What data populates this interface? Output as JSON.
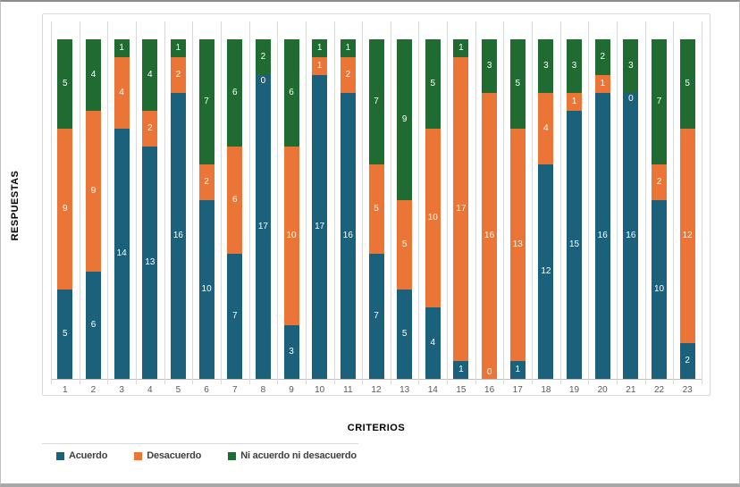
{
  "chart_data": {
    "type": "bar",
    "stacked": true,
    "title": "",
    "xlabel": "CRITERIOS",
    "ylabel": "RESPUESTAS",
    "ylim": [
      0,
      20
    ],
    "grid": "vertical-category-lines",
    "legend_position": "bottom-left",
    "categories": [
      "1",
      "2",
      "3",
      "4",
      "5",
      "6",
      "7",
      "8",
      "9",
      "10",
      "11",
      "12",
      "13",
      "14",
      "15",
      "16",
      "17",
      "18",
      "19",
      "20",
      "21",
      "22",
      "23"
    ],
    "series": [
      {
        "name": "Acuerdo",
        "color": "#1B617C",
        "values": [
          5,
          6,
          14,
          13,
          16,
          10,
          7,
          17,
          3,
          17,
          16,
          7,
          5,
          4,
          1,
          0,
          1,
          12,
          15,
          16,
          16,
          10,
          2
        ]
      },
      {
        "name": "Desacuerdo",
        "color": "#EB7536",
        "values": [
          9,
          9,
          4,
          2,
          2,
          2,
          6,
          0,
          10,
          1,
          2,
          5,
          5,
          10,
          17,
          16,
          13,
          4,
          1,
          1,
          0,
          2,
          12
        ]
      },
      {
        "name": "Ni acuerdo ni desacuerdo",
        "color": "#1F6B31",
        "values": [
          5,
          4,
          1,
          4,
          1,
          7,
          6,
          2,
          6,
          1,
          1,
          7,
          9,
          5,
          1,
          3,
          5,
          3,
          3,
          2,
          3,
          7,
          5
        ]
      }
    ],
    "colors": {
      "gridline": "#d9d9d9",
      "axis_line": "#bfbfbf",
      "tick_text": "#595959",
      "bar_label_text": "#ffffff"
    }
  }
}
